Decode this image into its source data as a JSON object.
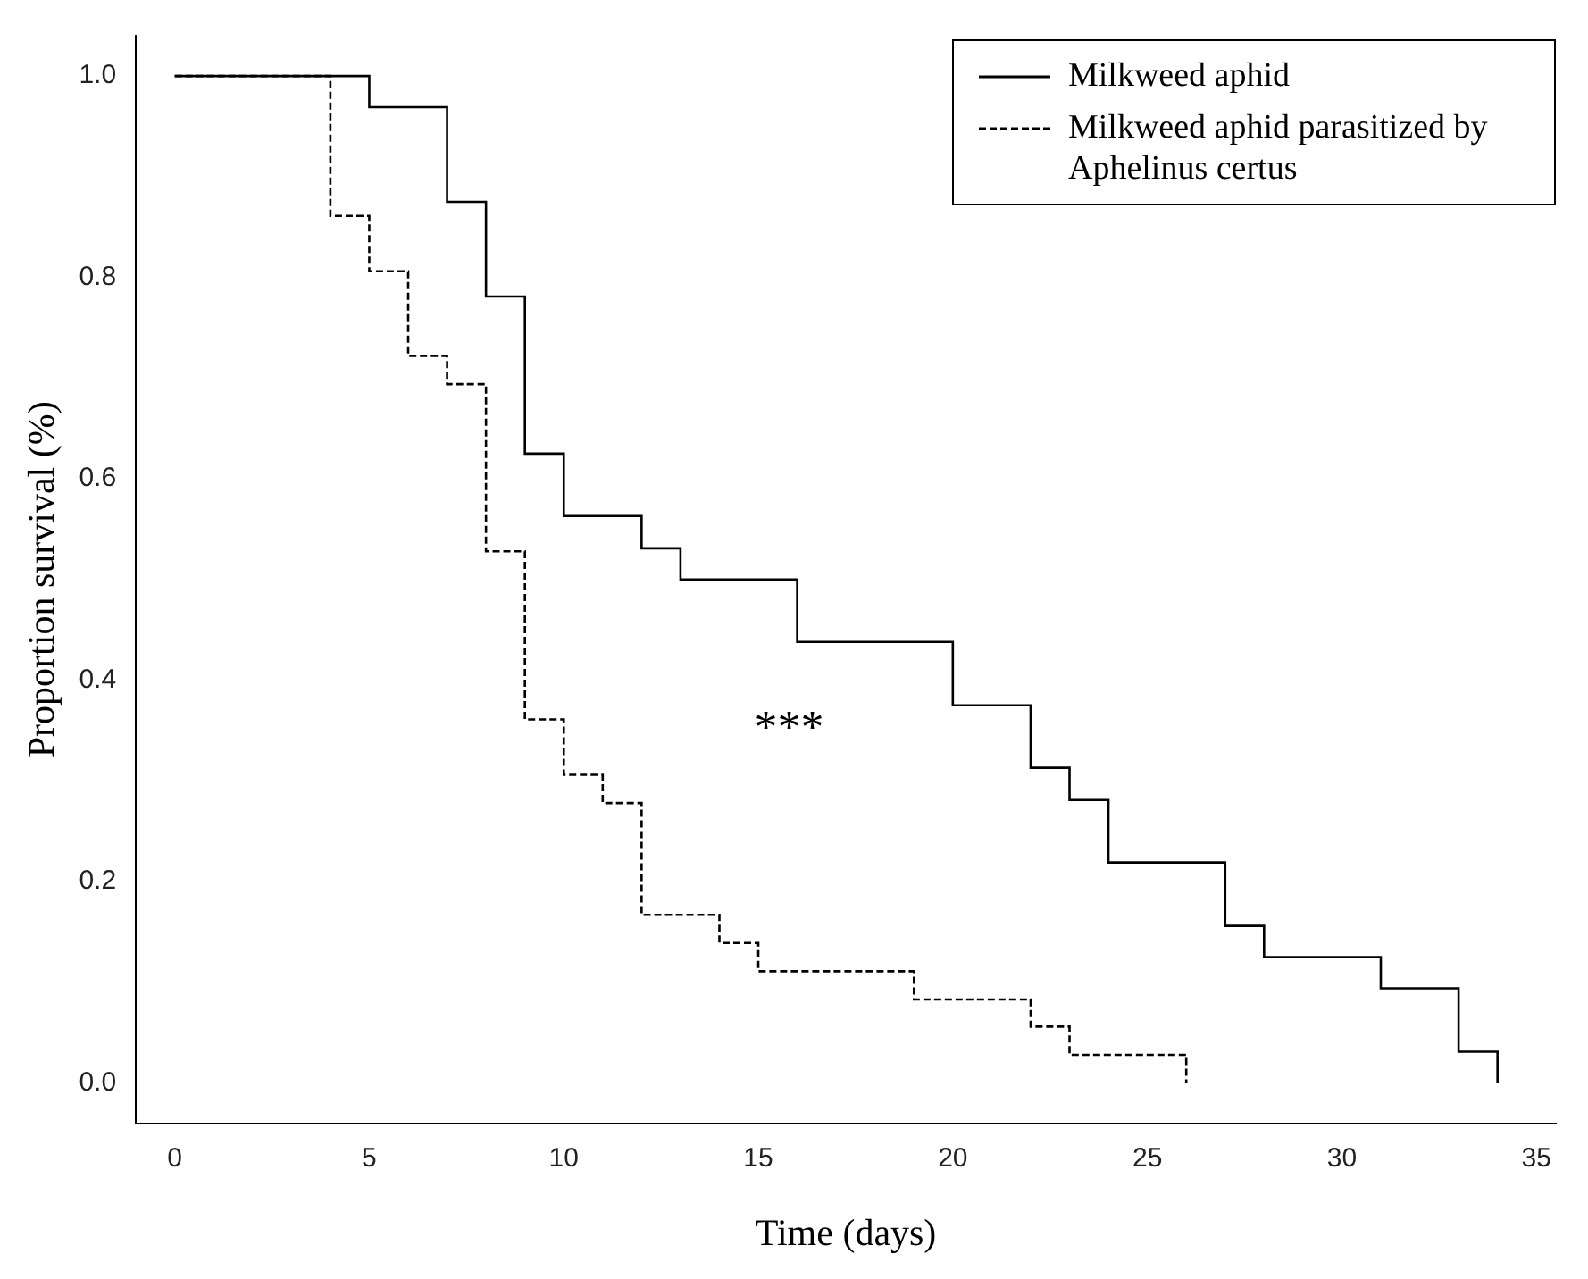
{
  "chart_data": {
    "type": "step",
    "xlabel": "Time (days)",
    "ylabel": "Proportion survival (%)",
    "xlim": [
      -1,
      35.5
    ],
    "xticks": [
      0,
      5,
      10,
      15,
      20,
      25,
      30,
      35
    ],
    "ylim": [
      -0.04,
      1.04
    ],
    "yticks": [
      {
        "value": 0,
        "label": "0.0"
      },
      {
        "value": 0.2,
        "label": "0.2"
      },
      {
        "value": 0.4,
        "label": "0.4"
      },
      {
        "value": 0.6,
        "label": "0.6"
      },
      {
        "value": 0.8,
        "label": "0.8"
      },
      {
        "value": 1,
        "label": "1.0"
      }
    ],
    "grid": false,
    "legend": "top right",
    "marker": "none",
    "annotations": [
      "***"
    ],
    "series": [
      {
        "name": "Milkweed aphid",
        "color": "#000000",
        "line_style": "solid",
        "x": [
          0,
          5,
          7,
          8,
          9,
          10,
          12,
          13,
          16,
          20,
          22,
          23,
          24,
          27,
          28,
          31,
          33,
          34
        ],
        "values": [
          1.0,
          0.969,
          0.875,
          0.781,
          0.625,
          0.563,
          0.531,
          0.5,
          0.438,
          0.375,
          0.313,
          0.281,
          0.219,
          0.156,
          0.125,
          0.094,
          0.031,
          0.0
        ]
      },
      {
        "name": "Milkweed aphid parasitized by Aphelinus certus",
        "color": "#000000",
        "line_style": "dashed",
        "x": [
          0,
          4,
          5,
          6,
          7,
          8,
          9,
          10,
          11,
          12,
          14,
          15,
          19,
          22,
          23,
          26
        ],
        "values": [
          1.0,
          0.861,
          0.806,
          0.722,
          0.694,
          0.528,
          0.361,
          0.306,
          0.278,
          0.167,
          0.139,
          0.111,
          0.083,
          0.056,
          0.028,
          0.0
        ]
      }
    ]
  }
}
